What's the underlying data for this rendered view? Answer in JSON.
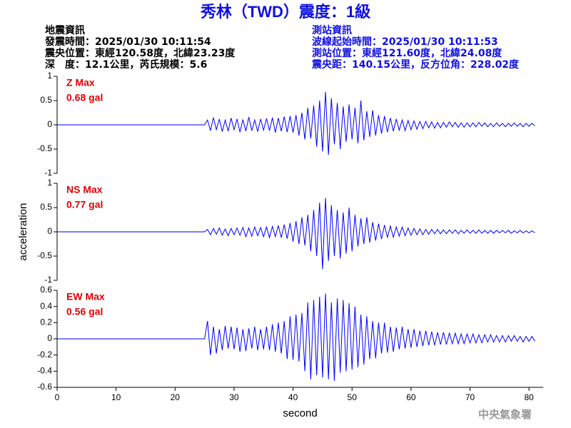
{
  "title": "秀林（TWD）震度：1級",
  "header": {
    "left": [
      "地震資訊",
      "發震時間：2025/01/30 10:11:54",
      "震央位置：東經120.58度，北緯23.23度",
      "深　度：12.1公里，芮氏規模：5.6"
    ],
    "right": [
      "測站資訊",
      "波線起始時間：2025/01/30 10:11:53",
      "測站位置：東經121.60度，北緯24.08度",
      "震央距：140.15公里，反方位角：228.02度"
    ]
  },
  "footer": "中央氣象署",
  "chart_data": [
    {
      "type": "line",
      "annotations": [
        "Z Max",
        "0.68 gal"
      ],
      "color": "#0000ff",
      "xlim": [
        0,
        82.4
      ],
      "ylim": [
        -1,
        1
      ],
      "yticks": [
        -1,
        -0.5,
        0,
        0.5,
        1
      ],
      "x": [
        0,
        25,
        25.5,
        26,
        26.5,
        27,
        27.5,
        28,
        28.5,
        29,
        29.5,
        30,
        30.5,
        31,
        31.5,
        32,
        32.5,
        33,
        33.5,
        34,
        34.5,
        35,
        35.5,
        36,
        36.5,
        37,
        37.5,
        38,
        38.5,
        39,
        39.5,
        40,
        40.5,
        41,
        41.5,
        42,
        42.5,
        43,
        43.5,
        44,
        44.5,
        45,
        45.5,
        46,
        46.5,
        47,
        47.5,
        48,
        48.5,
        49,
        49.5,
        50,
        50.5,
        51,
        51.5,
        52,
        52.5,
        53,
        53.5,
        54,
        54.5,
        55,
        55.5,
        56,
        56.5,
        57,
        57.5,
        58,
        58.5,
        59,
        59.5,
        60,
        60.5,
        61,
        61.5,
        62,
        62.5,
        63,
        63.5,
        64,
        64.5,
        65,
        65.5,
        66,
        66.5,
        67,
        67.5,
        68,
        68.5,
        69,
        69.5,
        70,
        70.5,
        71,
        71.5,
        72,
        72.5,
        73,
        73.5,
        74,
        74.5,
        75,
        75.5,
        76,
        76.5,
        77,
        77.5,
        78,
        78.5,
        79,
        79.5,
        80,
        80.5,
        81
      ],
      "values": [
        0,
        0,
        0.1,
        -0.12,
        0.15,
        -0.1,
        0.12,
        -0.14,
        0.1,
        -0.13,
        0.14,
        -0.1,
        0.12,
        -0.15,
        0.11,
        -0.13,
        0.16,
        -0.12,
        0.1,
        -0.14,
        0.12,
        -0.11,
        0.13,
        -0.12,
        0.15,
        -0.16,
        0.14,
        -0.13,
        0.17,
        -0.15,
        0.18,
        -0.16,
        0.2,
        -0.22,
        0.25,
        -0.3,
        0.35,
        -0.28,
        0.4,
        -0.45,
        0.5,
        -0.55,
        0.68,
        -0.62,
        0.55,
        -0.4,
        0.45,
        -0.5,
        0.38,
        -0.35,
        0.42,
        -0.3,
        0.35,
        -0.38,
        0.5,
        -0.32,
        0.28,
        -0.25,
        0.3,
        -0.22,
        0.2,
        -0.18,
        0.18,
        -0.15,
        0.14,
        -0.13,
        0.12,
        -0.11,
        0.1,
        -0.12,
        0.09,
        -0.1,
        0.08,
        -0.09,
        0.07,
        -0.08,
        0.07,
        -0.06,
        0.06,
        -0.07,
        0.05,
        -0.06,
        0.05,
        -0.05,
        0.06,
        -0.04,
        0.05,
        -0.05,
        0.04,
        -0.05,
        0.04,
        -0.04,
        0.04,
        -0.04,
        0.05,
        -0.03,
        0.04,
        -0.04,
        0.03,
        -0.04,
        0.04,
        -0.03,
        0.03,
        -0.04,
        0.03,
        -0.03,
        0.04,
        -0.03,
        0.03,
        -0.04,
        0.03,
        -0.03,
        0.03,
        -0.02
      ]
    },
    {
      "type": "line",
      "annotations": [
        "NS Max",
        "0.77 gal"
      ],
      "ylabel": "acceleration",
      "color": "#0000ff",
      "xlim": [
        0,
        82.4
      ],
      "ylim": [
        -1,
        1
      ],
      "yticks": [
        -1,
        -0.5,
        0,
        0.5,
        1
      ],
      "x": [
        0,
        25,
        25.5,
        26,
        26.5,
        27,
        27.5,
        28,
        28.5,
        29,
        29.5,
        30,
        30.5,
        31,
        31.5,
        32,
        32.5,
        33,
        33.5,
        34,
        34.5,
        35,
        35.5,
        36,
        36.5,
        37,
        37.5,
        38,
        38.5,
        39,
        39.5,
        40,
        40.5,
        41,
        41.5,
        42,
        42.5,
        43,
        43.5,
        44,
        44.5,
        45,
        45.5,
        46,
        46.5,
        47,
        47.5,
        48,
        48.5,
        49,
        49.5,
        50,
        50.5,
        51,
        51.5,
        52,
        52.5,
        53,
        53.5,
        54,
        54.5,
        55,
        55.5,
        56,
        56.5,
        57,
        57.5,
        58,
        58.5,
        59,
        59.5,
        60,
        60.5,
        61,
        61.5,
        62,
        62.5,
        63,
        63.5,
        64,
        64.5,
        65,
        65.5,
        66,
        66.5,
        67,
        67.5,
        68,
        68.5,
        69,
        69.5,
        70,
        70.5,
        71,
        71.5,
        72,
        72.5,
        73,
        73.5,
        74,
        74.5,
        75,
        75.5,
        76,
        76.5,
        77,
        77.5,
        78,
        78.5,
        79,
        79.5,
        80,
        80.5,
        81
      ],
      "values": [
        0,
        0,
        0.05,
        -0.06,
        0.07,
        -0.05,
        0.08,
        -0.07,
        0.06,
        -0.08,
        0.07,
        -0.06,
        0.08,
        -0.07,
        0.09,
        -0.1,
        0.08,
        -0.09,
        0.1,
        -0.08,
        0.09,
        -0.1,
        0.1,
        -0.12,
        0.11,
        -0.1,
        0.13,
        -0.12,
        0.15,
        -0.14,
        0.18,
        -0.2,
        0.22,
        -0.25,
        0.3,
        -0.28,
        0.35,
        -0.4,
        0.45,
        -0.5,
        0.6,
        -0.77,
        0.7,
        -0.6,
        0.55,
        -0.5,
        0.45,
        -0.55,
        0.4,
        -0.45,
        0.5,
        -0.4,
        0.35,
        -0.3,
        0.28,
        -0.25,
        0.3,
        -0.22,
        0.2,
        -0.18,
        0.17,
        -0.15,
        0.14,
        -0.12,
        0.12,
        -0.11,
        0.1,
        -0.09,
        0.1,
        -0.08,
        0.08,
        -0.07,
        0.07,
        -0.06,
        0.06,
        -0.06,
        0.05,
        -0.05,
        0.05,
        -0.04,
        0.05,
        -0.04,
        0.04,
        -0.04,
        0.04,
        -0.03,
        0.04,
        -0.04,
        0.03,
        -0.03,
        0.04,
        -0.03,
        0.03,
        -0.03,
        0.04,
        -0.03,
        0.03,
        -0.03,
        0.03,
        -0.03,
        0.03,
        -0.02,
        0.03,
        -0.02,
        0.03,
        -0.03,
        0.02,
        -0.02,
        0.03,
        -0.02,
        0.02,
        -0.02,
        0.02,
        -0.02
      ]
    },
    {
      "type": "line",
      "annotations": [
        "EW Max",
        "0.56 gal"
      ],
      "xlabel": "second",
      "color": "#0000ff",
      "xlim": [
        0,
        82.4
      ],
      "ylim": [
        -0.6,
        0.6
      ],
      "yticks": [
        -0.6,
        -0.4,
        -0.2,
        0,
        0.2,
        0.4,
        0.6
      ],
      "xticks": [
        0,
        10,
        20,
        30,
        40,
        50,
        60,
        70,
        80
      ],
      "x": [
        0,
        25,
        25.5,
        26,
        26.5,
        27,
        27.5,
        28,
        28.5,
        29,
        29.5,
        30,
        30.5,
        31,
        31.5,
        32,
        32.5,
        33,
        33.5,
        34,
        34.5,
        35,
        35.5,
        36,
        36.5,
        37,
        37.5,
        38,
        38.5,
        39,
        39.5,
        40,
        40.5,
        41,
        41.5,
        42,
        42.5,
        43,
        43.5,
        44,
        44.5,
        45,
        45.5,
        46,
        46.5,
        47,
        47.5,
        48,
        48.5,
        49,
        49.5,
        50,
        50.5,
        51,
        51.5,
        52,
        52.5,
        53,
        53.5,
        54,
        54.5,
        55,
        55.5,
        56,
        56.5,
        57,
        57.5,
        58,
        58.5,
        59,
        59.5,
        60,
        60.5,
        61,
        61.5,
        62,
        62.5,
        63,
        63.5,
        64,
        64.5,
        65,
        65.5,
        66,
        66.5,
        67,
        67.5,
        68,
        68.5,
        69,
        69.5,
        70,
        70.5,
        71,
        71.5,
        72,
        72.5,
        73,
        73.5,
        74,
        74.5,
        75,
        75.5,
        76,
        76.5,
        77,
        77.5,
        78,
        78.5,
        79,
        79.5,
        80,
        80.5,
        81
      ],
      "values": [
        0,
        0,
        0.22,
        -0.2,
        0.15,
        -0.18,
        0.12,
        -0.14,
        0.16,
        -0.12,
        0.15,
        -0.13,
        0.14,
        -0.16,
        0.12,
        -0.15,
        0.13,
        -0.12,
        0.15,
        -0.14,
        0.12,
        -0.13,
        0.15,
        -0.14,
        0.18,
        -0.16,
        0.2,
        -0.18,
        0.22,
        -0.25,
        0.28,
        -0.26,
        0.3,
        -0.28,
        0.32,
        -0.4,
        0.45,
        -0.5,
        0.48,
        -0.45,
        0.52,
        -0.48,
        0.56,
        -0.5,
        0.45,
        -0.52,
        0.5,
        -0.42,
        0.48,
        -0.4,
        0.44,
        -0.38,
        0.4,
        -0.35,
        0.3,
        -0.32,
        0.28,
        -0.25,
        0.22,
        -0.24,
        0.2,
        -0.18,
        0.2,
        -0.17,
        0.15,
        -0.16,
        0.14,
        -0.13,
        0.15,
        -0.12,
        0.12,
        -0.11,
        0.12,
        -0.1,
        0.1,
        -0.09,
        0.1,
        -0.08,
        0.09,
        -0.08,
        0.08,
        -0.07,
        0.08,
        -0.07,
        0.07,
        -0.06,
        0.07,
        -0.06,
        0.06,
        -0.06,
        0.06,
        -0.05,
        0.06,
        -0.05,
        0.05,
        -0.05,
        0.05,
        -0.04,
        0.05,
        -0.04,
        0.04,
        -0.04,
        0.04,
        -0.04,
        0.04,
        -0.03,
        0.04,
        -0.03,
        0.03,
        -0.04,
        0.03,
        -0.03,
        0.03,
        -0.03
      ]
    }
  ]
}
